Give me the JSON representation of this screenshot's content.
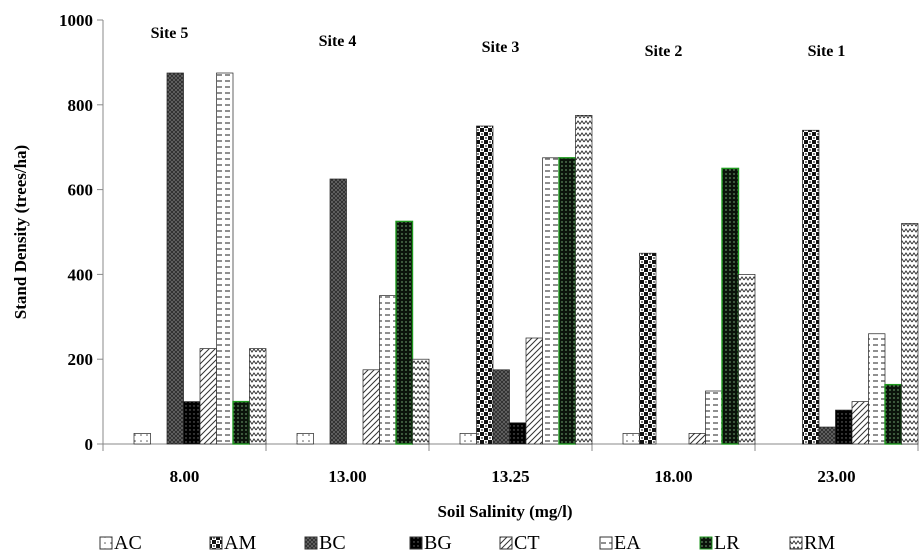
{
  "chart_data": {
    "type": "bar",
    "xlabel": "Soil Salinity (mg/l)",
    "ylabel": "Stand Density (trees/ha)",
    "ylim": [
      0,
      1000
    ],
    "yticks": [
      0,
      200,
      400,
      600,
      800,
      1000
    ],
    "grid": false,
    "legend_position": "bottom",
    "categories": [
      "8.00",
      "13.00",
      "13.25",
      "18.00",
      "23.00"
    ],
    "site_labels": [
      "Site 5",
      "Site 4",
      "Site 3",
      "Site 2",
      "Site 1"
    ],
    "series": [
      {
        "name": "AC",
        "pattern": "dots-light",
        "values": [
          25,
          25,
          25,
          25,
          0
        ]
      },
      {
        "name": "AM",
        "pattern": "checker",
        "values": [
          0,
          0,
          750,
          450,
          740
        ]
      },
      {
        "name": "BC",
        "pattern": "crosshatch",
        "values": [
          875,
          625,
          175,
          0,
          40
        ]
      },
      {
        "name": "BG",
        "pattern": "black-dots",
        "values": [
          100,
          0,
          50,
          0,
          80
        ]
      },
      {
        "name": "CT",
        "pattern": "diagonal",
        "values": [
          225,
          175,
          250,
          25,
          100
        ]
      },
      {
        "name": "EA",
        "pattern": "dashes",
        "values": [
          875,
          350,
          675,
          125,
          260
        ]
      },
      {
        "name": "LR",
        "pattern": "green-dots",
        "values": [
          100,
          525,
          675,
          650,
          140
        ]
      },
      {
        "name": "RM",
        "pattern": "zigzag",
        "values": [
          225,
          200,
          775,
          400,
          520
        ]
      }
    ]
  }
}
